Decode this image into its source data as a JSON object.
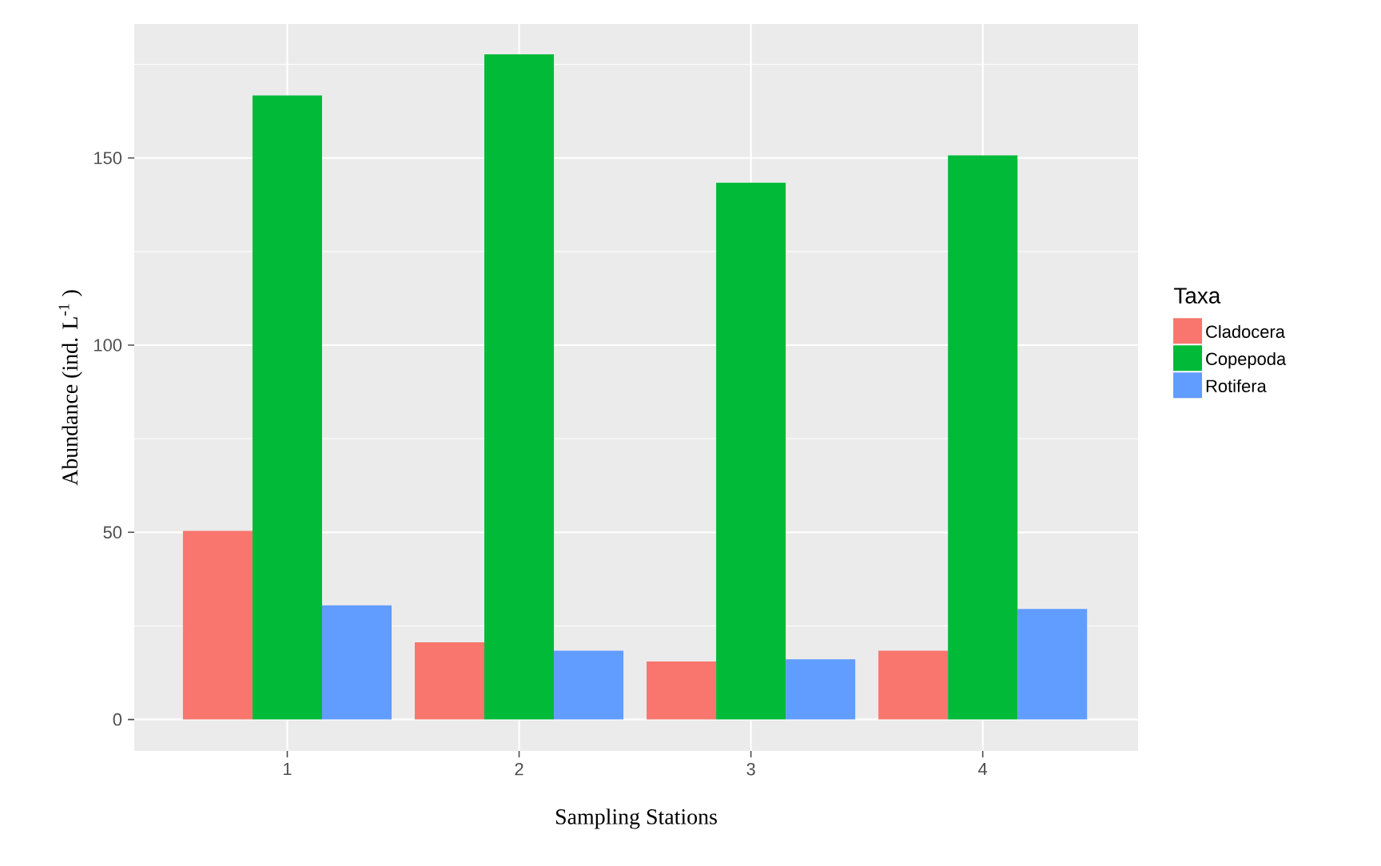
{
  "chart_data": {
    "type": "bar",
    "xlabel": "Sampling Stations",
    "ylabel": "Abundance (ind. L$^{-1}$ )",
    "legend_title": "Taxa",
    "categories": [
      "1",
      "2",
      "3",
      "4"
    ],
    "series": [
      {
        "name": "Cladocera",
        "color": "#f8766d",
        "values": [
          50.4,
          20.6,
          15.5,
          18.4
        ]
      },
      {
        "name": "Copepoda",
        "color": "#00ba38",
        "values": [
          166.7,
          177.7,
          143.4,
          150.7
        ]
      },
      {
        "name": "Rotifera",
        "color": "#619cff",
        "values": [
          30.5,
          18.4,
          16.1,
          29.5
        ]
      }
    ],
    "ylim": [
      -8.4,
      185.8
    ],
    "yticks": [
      0,
      50,
      100,
      150
    ],
    "grid": true,
    "legend": "right"
  }
}
